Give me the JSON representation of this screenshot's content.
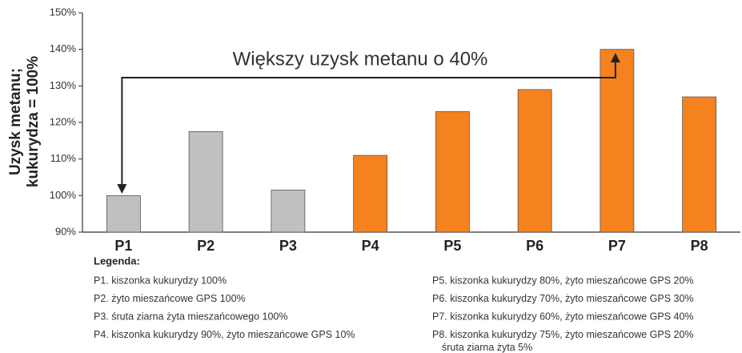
{
  "chart_data": {
    "type": "bar",
    "y_label": [
      "Uzysk metanu;",
      "kukurydza = 100%"
    ],
    "annotation": "Większy uzysk metanu o 40%",
    "categories": [
      "P1",
      "P2",
      "P3",
      "P4",
      "P5",
      "P6",
      "P7",
      "P8"
    ],
    "values": [
      100,
      117.5,
      101.5,
      111,
      123,
      129,
      140,
      127
    ],
    "colors": [
      "#c0c0c0",
      "#c0c0c0",
      "#c0c0c0",
      "#f5821f",
      "#f5821f",
      "#f5821f",
      "#f5821f",
      "#f5821f"
    ],
    "ylim": [
      90,
      150
    ],
    "yticks": [
      {
        "value": 90,
        "label": "90%"
      },
      {
        "value": 100,
        "label": "100%"
      },
      {
        "value": 110,
        "label": "110%"
      },
      {
        "value": 120,
        "label": "120%"
      },
      {
        "value": 130,
        "label": "130%"
      },
      {
        "value": 140,
        "label": "140%"
      },
      {
        "value": 150,
        "label": "150%"
      }
    ],
    "legend_title": "Legenda:",
    "legend_items": [
      [
        "P1. kiszonka kukurydzy 100%"
      ],
      [
        "P2. żyto mieszańcowe GPS 100%"
      ],
      [
        "P3. śruta ziarna żyta mieszańcowego 100%"
      ],
      [
        "P4. kiszonka kukurydzy 90%, żyto mieszańcowe GPS 10%"
      ],
      [
        "P5. kiszonka kukurydzy 80%, żyto mieszańcowe GPS 20%"
      ],
      [
        "P6. kiszonka kukurydzy 70%, żyto mieszańcowe GPS 30%"
      ],
      [
        "P7. kiszonka kukurydzy 60%, żyto mieszańcowe GPS 40%"
      ],
      [
        "P8. kiszonka kukurydzy 75%, żyto mieszańcowe GPS 20%",
        "śruta ziarna żyta 5%"
      ]
    ]
  }
}
